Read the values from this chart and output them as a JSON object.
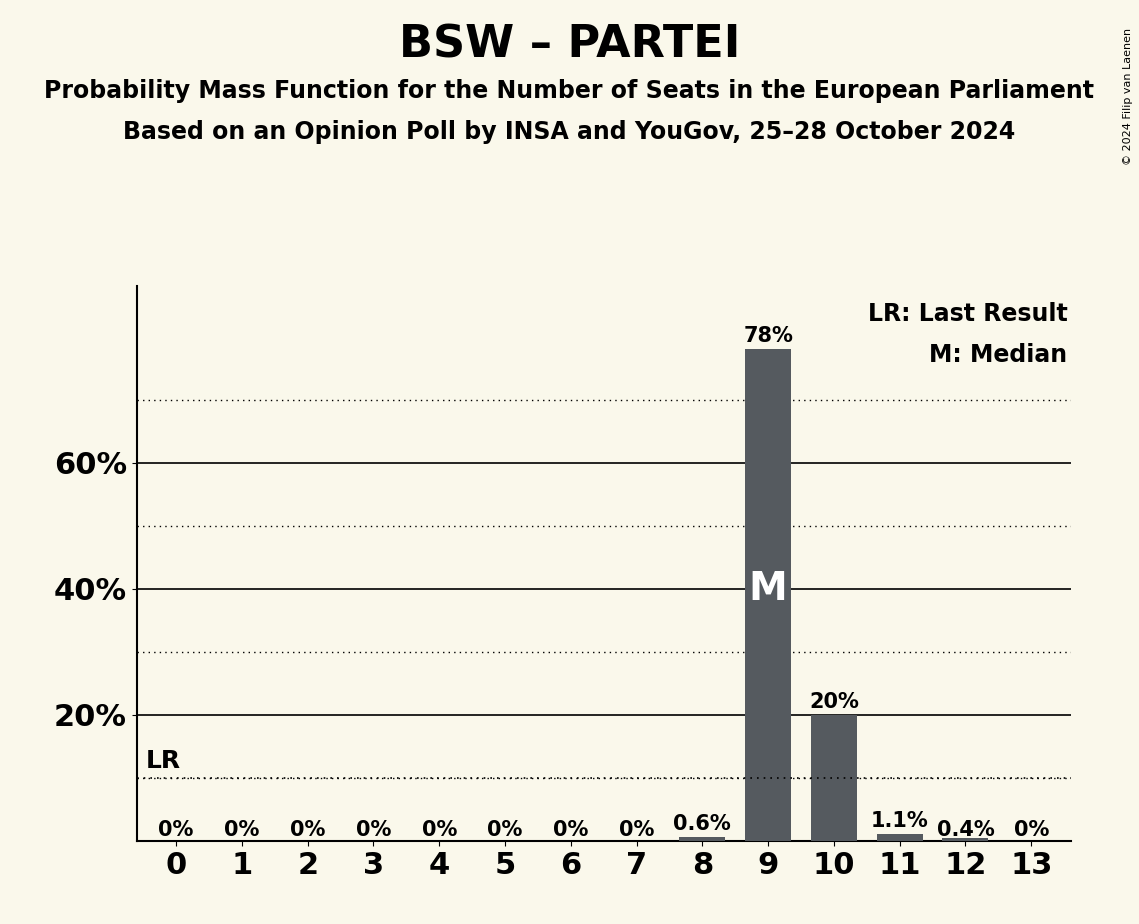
{
  "title": "BSW – PARTEI",
  "subtitle1": "Probability Mass Function for the Number of Seats in the European Parliament",
  "subtitle2": "Based on an Opinion Poll by INSA and YouGov, 25–28 October 2024",
  "copyright": "© 2024 Filip van Laenen",
  "seats": [
    0,
    1,
    2,
    3,
    4,
    5,
    6,
    7,
    8,
    9,
    10,
    11,
    12,
    13
  ],
  "probabilities": [
    0.0,
    0.0,
    0.0,
    0.0,
    0.0,
    0.0,
    0.0,
    0.0,
    0.006,
    0.78,
    0.2,
    0.011,
    0.004,
    0.0
  ],
  "bar_color": "#555a5f",
  "background_color": "#faf8eb",
  "median_seat": 9,
  "lr_line_y": 0.1,
  "solid_yticks": [
    0.2,
    0.4,
    0.6
  ],
  "dotted_yticks": [
    0.1,
    0.3,
    0.5,
    0.7
  ],
  "ytick_positions": [
    0.2,
    0.4,
    0.6
  ],
  "ytick_labels": [
    "20%",
    "40%",
    "60%"
  ],
  "ylim": [
    0,
    0.88
  ],
  "xlim": [
    -0.6,
    13.6
  ],
  "bar_labels": [
    "0%",
    "0%",
    "0%",
    "0%",
    "0%",
    "0%",
    "0%",
    "0%",
    "0.6%",
    "78%",
    "20%",
    "1.1%",
    "0.4%",
    "0%"
  ],
  "legend_text1": "LR: Last Result",
  "legend_text2": "M: Median",
  "title_fontsize": 32,
  "subtitle_fontsize": 17,
  "ytick_fontsize": 22,
  "xtick_fontsize": 22,
  "bar_label_fontsize": 15,
  "m_label_fontsize": 28,
  "lr_label_fontsize": 18,
  "legend_fontsize": 17,
  "copyright_fontsize": 8
}
